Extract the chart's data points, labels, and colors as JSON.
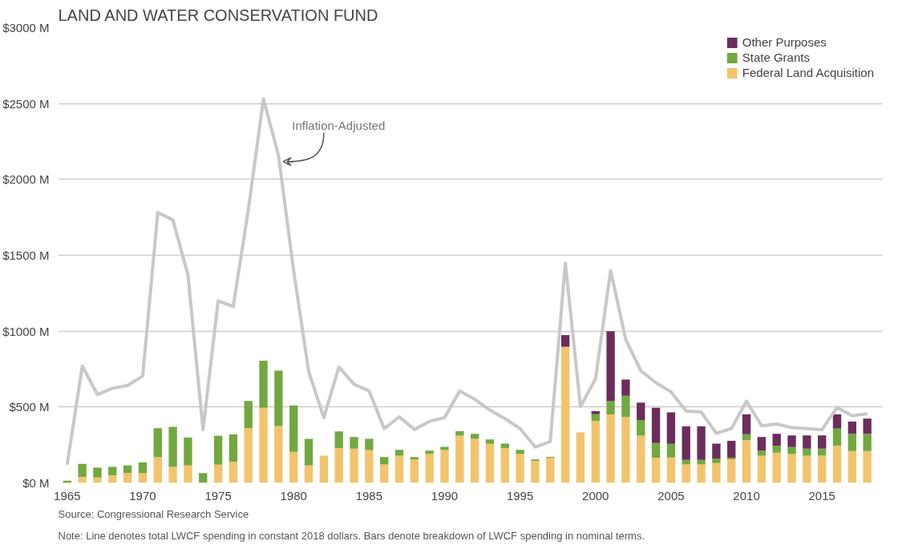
{
  "chart_data": {
    "type": "bar",
    "title": "LAND AND WATER CONSERVATION FUND",
    "stacked": true,
    "x": [
      1965,
      1966,
      1967,
      1968,
      1969,
      1970,
      1971,
      1972,
      1973,
      1974,
      1975,
      1976,
      1977,
      1978,
      1979,
      1980,
      1981,
      1982,
      1983,
      1984,
      1985,
      1986,
      1987,
      1988,
      1989,
      1990,
      1991,
      1992,
      1993,
      1994,
      1995,
      1996,
      1997,
      1998,
      1999,
      2000,
      2001,
      2002,
      2003,
      2004,
      2005,
      2006,
      2007,
      2008,
      2009,
      2010,
      2011,
      2012,
      2013,
      2014,
      2015,
      2016,
      2017,
      2018
    ],
    "series": [
      {
        "name": "Federal Land Acquisition",
        "color": "#f2c46d",
        "values": [
          null,
          40,
          35,
          50,
          65,
          65,
          170,
          105,
          115,
          null,
          120,
          140,
          360,
          495,
          375,
          205,
          115,
          180,
          230,
          226,
          216,
          121,
          180,
          154,
          192,
          216,
          311,
          291,
          257,
          228,
          190,
          145,
          166,
          897,
          333,
          408,
          452,
          434,
          311,
          166,
          168,
          121,
          121,
          131,
          156,
          281,
          180,
          200,
          190,
          180,
          180,
          246,
          210,
          210
        ]
      },
      {
        "name": "State Grants",
        "color": "#72a840",
        "values": [
          15,
          85,
          65,
          55,
          50,
          70,
          190,
          265,
          185,
          65,
          190,
          180,
          180,
          310,
          365,
          305,
          175,
          null,
          110,
          77,
          75,
          49,
          38,
          16,
          20,
          22,
          30,
          32,
          30,
          31,
          28,
          9,
          6,
          0,
          0,
          45,
          87,
          140,
          103,
          97,
          89,
          31,
          31,
          29,
          10,
          40,
          34,
          46,
          46,
          46,
          46,
          112,
          113,
          113
        ]
      },
      {
        "name": "Other Purposes",
        "color": "#6b2d5c",
        "values": [
          0,
          0,
          0,
          0,
          0,
          0,
          0,
          0,
          0,
          0,
          0,
          0,
          0,
          0,
          0,
          0,
          0,
          0,
          0,
          0,
          0,
          0,
          0,
          0,
          0,
          0,
          0,
          0,
          0,
          0,
          0,
          0,
          0,
          77,
          0,
          20,
          461,
          107,
          115,
          232,
          208,
          220,
          220,
          99,
          111,
          131,
          89,
          77,
          77,
          87,
          87,
          94,
          81,
          101
        ]
      },
      {
        "type": "line",
        "color": "#c8c8c6",
        "values": [
          120,
          770,
          582,
          624,
          642,
          703,
          1782,
          1733,
          1370,
          351,
          1200,
          1163,
          1800,
          2530,
          2157,
          1400,
          733,
          430,
          764,
          650,
          606,
          358,
          436,
          351,
          406,
          430,
          606,
          551,
          479,
          424,
          358,
          236,
          273,
          1448,
          503,
          685,
          1400,
          945,
          739,
          660,
          600,
          473,
          467,
          327,
          358,
          539,
          376,
          388,
          364,
          358,
          351,
          497,
          442,
          455
        ]
      }
    ],
    "xlim": [
      1964.4,
      2019
    ],
    "xticks": [
      1965,
      1970,
      1975,
      1980,
      1985,
      1990,
      1995,
      2000,
      2005,
      2010,
      2015
    ],
    "ylim": [
      0,
      3000
    ],
    "yticks": [
      {
        "value": 0,
        "label": "$0 M"
      },
      {
        "value": 500,
        "label": "$500 M"
      },
      {
        "value": 1000,
        "label": "$1000 M"
      },
      {
        "value": 1500,
        "label": "$1500 M"
      },
      {
        "value": 2000,
        "label": "$2000 M"
      },
      {
        "value": 2500,
        "label": "$2500 M"
      },
      {
        "value": 3000,
        "label": "$3000 M"
      }
    ],
    "grid": "y",
    "legend": "top right",
    "marker": "none",
    "annotations": [
      {
        "text": "Inflation-Adjusted",
        "x": 1979,
        "y": 2157
      },
      "Source: Congressional Research Service",
      "Note: Line denotes total LWCF spending in constant 2018 dollars. Bars denote breakdown of LWCF spending in nominal terms."
    ]
  }
}
